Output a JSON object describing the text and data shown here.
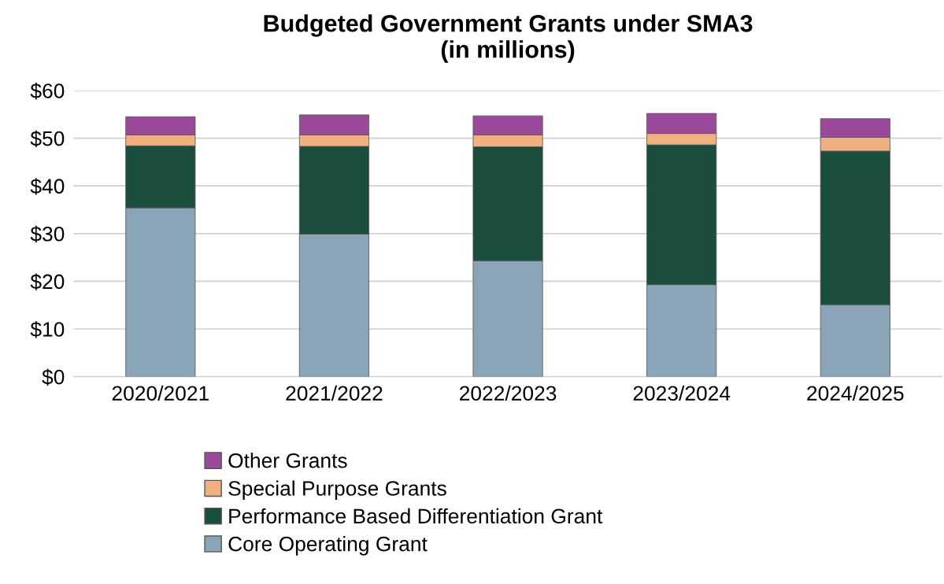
{
  "chart_data": {
    "type": "bar",
    "title": "Budgeted Government Grants under SMA3\n(in millions)",
    "categories": [
      "2020/2021",
      "2021/2022",
      "2022/2023",
      "2023/2024",
      "2024/2025"
    ],
    "stacked": true,
    "series": [
      {
        "name": "Core Operating Grant",
        "color": "#8ba5b8",
        "values": [
          35.4,
          29.9,
          24.3,
          19.3,
          15.1
        ]
      },
      {
        "name": "Performance Based Differentiation Grant",
        "color": "#1b4d3e",
        "values": [
          13.0,
          18.4,
          23.9,
          29.3,
          32.2
        ]
      },
      {
        "name": "Special Purpose Grants",
        "color": "#f0b080",
        "values": [
          2.3,
          2.4,
          2.5,
          2.4,
          2.9
        ]
      },
      {
        "name": "Other Grants",
        "color": "#9b4a9b",
        "values": [
          3.8,
          4.2,
          4.0,
          4.2,
          3.9
        ]
      }
    ],
    "ylim": [
      0,
      60
    ],
    "yticks": [
      {
        "value": 0,
        "label": "$0"
      },
      {
        "value": 10,
        "label": "$10"
      },
      {
        "value": 20,
        "label": "$20"
      },
      {
        "value": 30,
        "label": "$30"
      },
      {
        "value": 40,
        "label": "$40"
      },
      {
        "value": 50,
        "label": "$50"
      },
      {
        "value": 60,
        "label": "$60"
      }
    ],
    "grid": "y",
    "legend": "bottom"
  }
}
